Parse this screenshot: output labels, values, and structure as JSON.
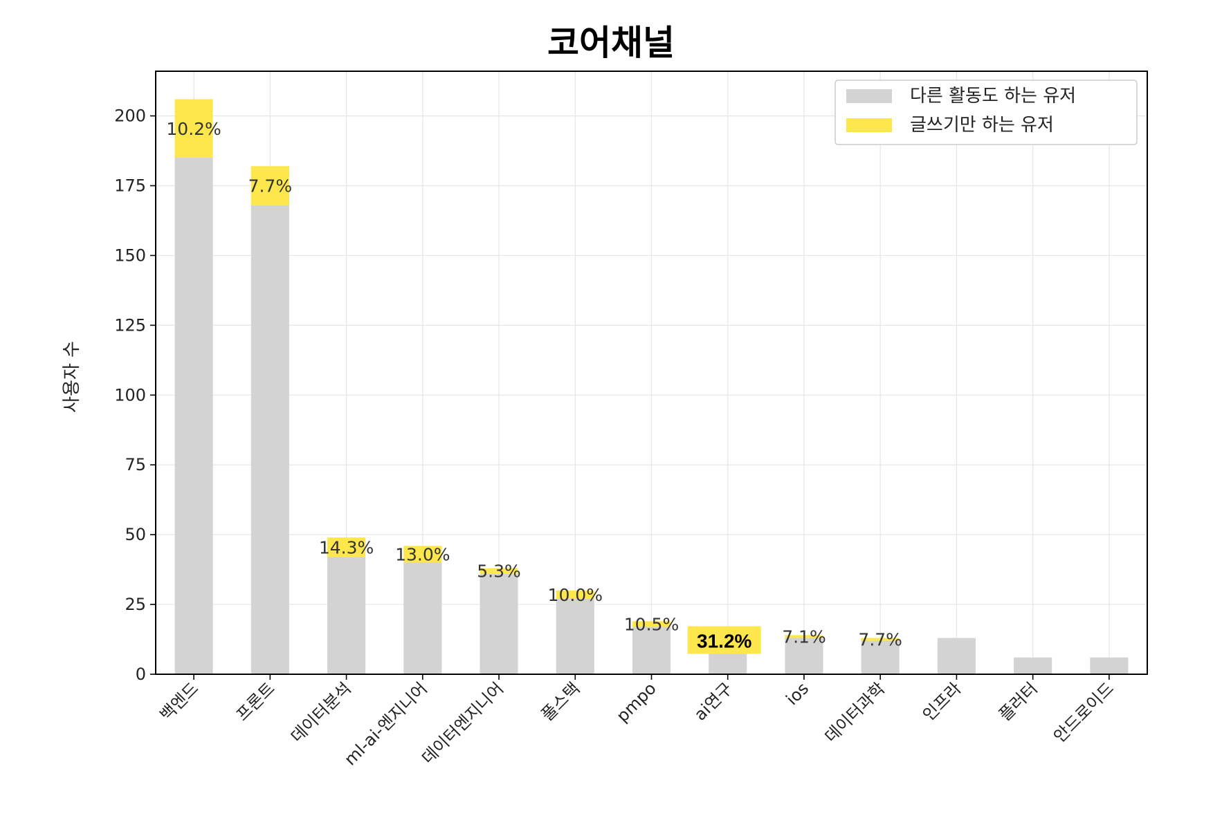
{
  "chart_data": {
    "type": "bar",
    "stacked": true,
    "title": "코어채널",
    "ylabel": "사용자 수",
    "xlabel": "",
    "ylim": [
      0,
      216
    ],
    "yticks": [
      0,
      25,
      50,
      75,
      100,
      125,
      150,
      175,
      200
    ],
    "grid": true,
    "legend_position": "top-right",
    "categories": [
      "백엔드",
      "프론트",
      "데이터분석",
      "ml-ai-엔지니어",
      "데이터엔지니어",
      "풀스택",
      "pmpo",
      "ai연구",
      "ios",
      "데이터과학",
      "인프라",
      "플러터",
      "안드로이드"
    ],
    "series": [
      {
        "name": "다른 활동도 하는 유저",
        "color": "#d3d3d3",
        "values": [
          185,
          168,
          42,
          40,
          36,
          27,
          17,
          11,
          13,
          12,
          13,
          6,
          6
        ]
      },
      {
        "name": "글쓰기만 하는 유저",
        "color": "#fde74c",
        "values": [
          21,
          14,
          7,
          6,
          2,
          3,
          2,
          5,
          1,
          1,
          0,
          0,
          0
        ]
      }
    ],
    "annotations": [
      "10.2%",
      "7.7%",
      "14.3%",
      "13.0%",
      "5.3%",
      "10.0%",
      "10.5%",
      "31.2%",
      "7.1%",
      "7.7%",
      "",
      "",
      ""
    ],
    "highlight_index": 7
  }
}
